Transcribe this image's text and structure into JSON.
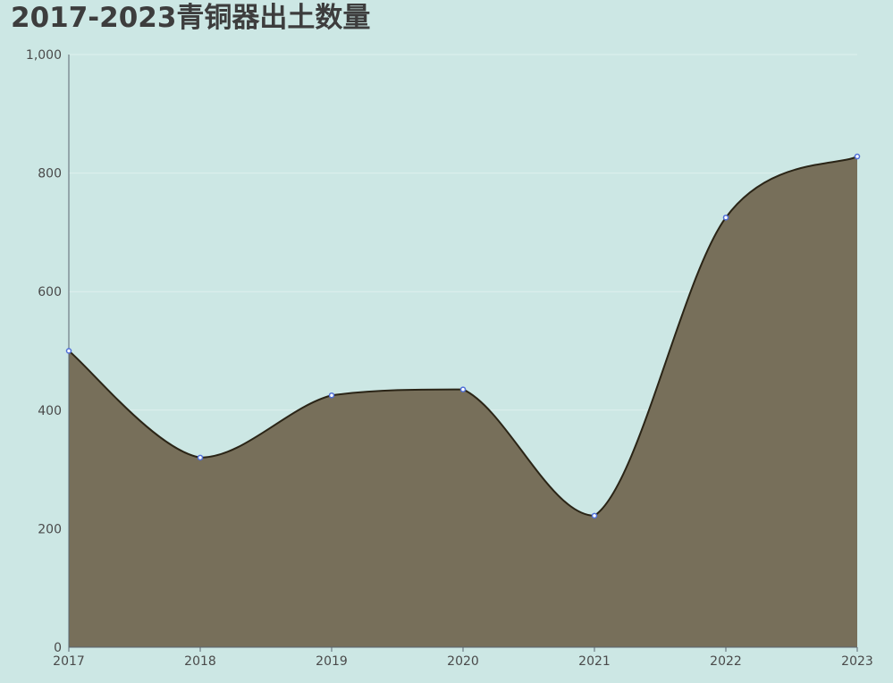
{
  "chart_data": {
    "type": "area",
    "title": "2017-2023青铜器出土数量",
    "xlabel": "",
    "ylabel": "",
    "categories": [
      "2017",
      "2018",
      "2019",
      "2020",
      "2021",
      "2022",
      "2023"
    ],
    "values": [
      500,
      320,
      425,
      435,
      222,
      725,
      828
    ],
    "ylim": [
      0,
      1000
    ],
    "yticks": [
      0,
      200,
      400,
      600,
      800,
      1000
    ],
    "ytick_labels": [
      "0",
      "200",
      "400",
      "600",
      "800",
      "1,000"
    ],
    "smooth": true,
    "grid": true,
    "legend": "none",
    "colors": {
      "background": "#cce7e4",
      "area_fill": "#776f5a",
      "line": "#2a2416",
      "marker": "#4f6fd8",
      "gridline": "#def0ee",
      "axis": "#5a6470"
    }
  }
}
